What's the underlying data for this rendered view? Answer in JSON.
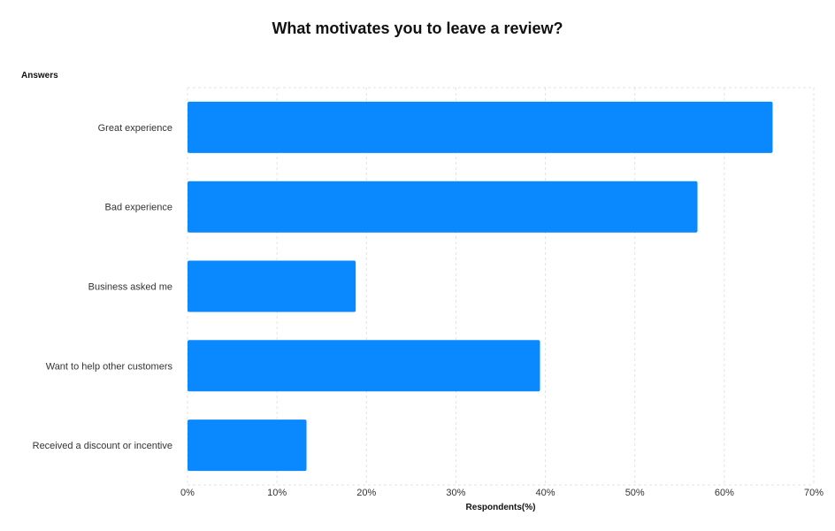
{
  "chart_data": {
    "type": "bar",
    "orientation": "horizontal",
    "title": "What motivates you to leave a review?",
    "ylabel": "Answers",
    "xlabel": "Respondents(%)",
    "categories": [
      "Great experience",
      "Bad experience",
      "Business asked me",
      "Want to help other customers",
      "Received a discount or incentive"
    ],
    "values": [
      65.4,
      57.0,
      18.8,
      39.4,
      13.3
    ],
    "xlim": [
      0,
      70
    ],
    "x_ticks": [
      "0%",
      "10%",
      "20%",
      "30%",
      "40%",
      "50%",
      "60%",
      "70%"
    ],
    "grid": true,
    "bar_color": "#0A89FF",
    "grid_color": "#E3E3E3"
  }
}
